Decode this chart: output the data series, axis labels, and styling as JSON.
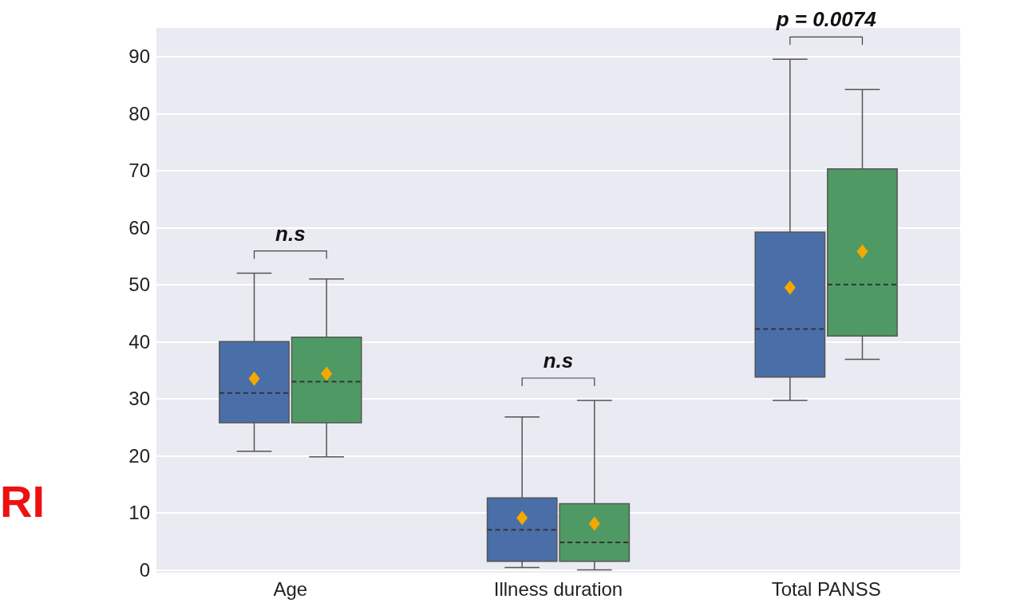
{
  "chart_data": {
    "type": "box",
    "categories": [
      "Age",
      "Illness duration",
      "Total PANSS"
    ],
    "series": [
      {
        "color": "#4a6ea8",
        "boxes": [
          {
            "low": 20.8,
            "q1": 25.8,
            "median": 31,
            "q3": 40,
            "high": 52,
            "mean": 33.5
          },
          {
            "low": 0.4,
            "q1": 1.5,
            "median": 7,
            "q3": 12.6,
            "high": 26.8,
            "mean": 9.1
          },
          {
            "low": 29.7,
            "q1": 33.8,
            "median": 42.2,
            "q3": 59.2,
            "high": 89.5,
            "mean": 49.5
          }
        ]
      },
      {
        "color": "#4f9a64",
        "boxes": [
          {
            "low": 19.8,
            "q1": 25.8,
            "median": 33,
            "q3": 40.8,
            "high": 51,
            "mean": 34.4
          },
          {
            "low": 0,
            "q1": 1.5,
            "median": 4.8,
            "q3": 11.6,
            "high": 29.7,
            "mean": 8.1
          },
          {
            "low": 36.9,
            "q1": 41,
            "median": 50,
            "q3": 70.3,
            "high": 84.2,
            "mean": 55.8
          }
        ]
      }
    ],
    "ylim": [
      -0.5,
      95
    ],
    "yticks": [
      0,
      10,
      20,
      30,
      40,
      50,
      60,
      70,
      80,
      90
    ],
    "grid": "y",
    "line_style": "dashed",
    "marker": "diamond",
    "annotations": [
      "n.s",
      "n.s",
      "p = 0.0074",
      "RI"
    ]
  }
}
